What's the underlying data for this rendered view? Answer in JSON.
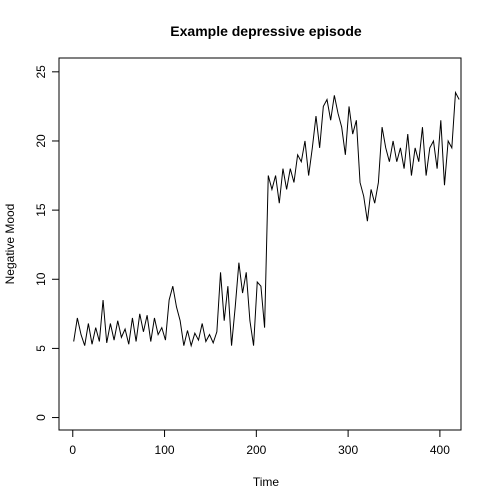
{
  "chart_data": {
    "type": "line",
    "title": "Example depressive episode",
    "xlabel": "Time",
    "ylabel": "Negative Mood",
    "color": "#000000",
    "xlim": [
      -15,
      423
    ],
    "ylim": [
      -0.9,
      26
    ],
    "xticks": [
      0,
      100,
      200,
      300,
      400
    ],
    "yticks": [
      0,
      5,
      10,
      15,
      20,
      25
    ],
    "x": [
      1,
      5,
      9,
      13,
      17,
      21,
      25,
      29,
      33,
      37,
      41,
      45,
      49,
      53,
      57,
      61,
      65,
      69,
      73,
      77,
      81,
      85,
      89,
      93,
      97,
      101,
      105,
      109,
      113,
      117,
      121,
      125,
      129,
      133,
      137,
      141,
      145,
      149,
      153,
      157,
      161,
      165,
      169,
      173,
      177,
      181,
      185,
      189,
      193,
      197,
      201,
      205,
      209,
      213,
      217,
      221,
      225,
      229,
      233,
      237,
      241,
      245,
      249,
      253,
      257,
      261,
      265,
      269,
      273,
      277,
      281,
      285,
      289,
      293,
      297,
      301,
      305,
      309,
      313,
      317,
      321,
      325,
      329,
      333,
      337,
      341,
      345,
      349,
      353,
      357,
      361,
      365,
      369,
      373,
      377,
      381,
      385,
      389,
      393,
      397,
      401,
      405,
      409,
      413,
      417,
      421
    ],
    "values": [
      5.5,
      7.2,
      6,
      5.2,
      6.8,
      5.3,
      6.5,
      5.5,
      8.5,
      5.4,
      6.8,
      5.6,
      7,
      5.8,
      6.4,
      5.3,
      7.2,
      5.5,
      7.5,
      6.2,
      7.4,
      5.5,
      7.2,
      6,
      6.5,
      5.6,
      8.5,
      9.5,
      8,
      7,
      5.2,
      6.3,
      5.2,
      6.1,
      5.6,
      6.8,
      5.5,
      6,
      5.4,
      6.2,
      10.5,
      7,
      9.5,
      5.2,
      8,
      11.2,
      9,
      10.5,
      7,
      5.2,
      9.8,
      9.5,
      6.5,
      17.5,
      16.5,
      17.5,
      15.5,
      18,
      16.5,
      18,
      17,
      19,
      18.5,
      20,
      17.5,
      19.5,
      21.8,
      19.5,
      22.5,
      23,
      21.5,
      23.3,
      22,
      21,
      19,
      22.5,
      20.5,
      21.5,
      17,
      16,
      14.2,
      16.5,
      15.5,
      17,
      21,
      19.5,
      18.5,
      20,
      18.5,
      19.5,
      18,
      20.5,
      17.5,
      19.5,
      18.5,
      21,
      17.5,
      19.5,
      20,
      18,
      21.5,
      16.8,
      20,
      19.5,
      23.5,
      23
    ]
  }
}
